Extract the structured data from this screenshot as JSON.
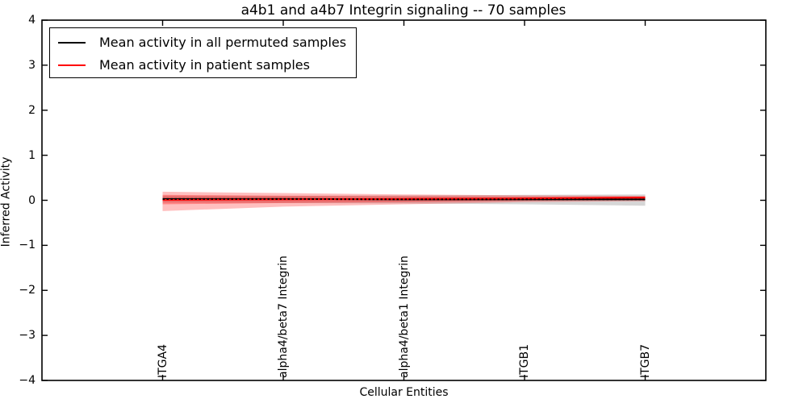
{
  "figure": {
    "title": "a4b1 and a4b7 Integrin signaling -- 70 samples",
    "xlabel": "Cellular Entities",
    "ylabel": "Inferred Activity",
    "background": "#ffffff"
  },
  "legend": {
    "position": "upper left",
    "entries": [
      {
        "label": "Mean activity in all permuted samples",
        "color": "#000000"
      },
      {
        "label": "Mean activity in patient samples",
        "color": "#ff0000"
      }
    ]
  },
  "chart_data": {
    "type": "line",
    "title": "a4b1 and a4b7 Integrin signaling -- 70 samples",
    "xlabel": "Cellular Entities",
    "ylabel": "Inferred Activity",
    "categories": [
      "ITGA4",
      "alpha4/beta7 Integrin",
      "alpha4/beta1 Integrin",
      "ITGB1",
      "ITGB7"
    ],
    "x": [
      1,
      2,
      3,
      4,
      5
    ],
    "xlim": [
      0,
      6
    ],
    "ylim": [
      -4,
      4
    ],
    "yticks": [
      -4,
      -3,
      -2,
      -1,
      0,
      1,
      2,
      3,
      4
    ],
    "grid": false,
    "legend_position": "upper left",
    "series": [
      {
        "name": "Mean activity in all permuted samples",
        "color": "#000000",
        "linestyle": "solid",
        "overlay": "dotted",
        "values": [
          0.03,
          0.03,
          0.02,
          0.02,
          0.02
        ]
      },
      {
        "name": "Mean activity in patient samples",
        "color": "#ff0000",
        "linestyle": "solid",
        "values": [
          0.01,
          0.02,
          0.03,
          0.04,
          0.06
        ]
      }
    ],
    "bands": [
      {
        "name": "permuted-samples-std-band",
        "color": "#777777",
        "opacity": 0.3,
        "upper": [
          0.1,
          0.1,
          0.11,
          0.12,
          0.13
        ],
        "lower": [
          -0.05,
          -0.06,
          -0.07,
          -0.09,
          -0.12
        ]
      },
      {
        "name": "patient-samples-outer-std-band",
        "color": "#ff0000",
        "opacity": 0.25,
        "upper": [
          0.19,
          0.16,
          0.13,
          0.11,
          0.1
        ],
        "lower": [
          -0.24,
          -0.14,
          -0.09,
          -0.04,
          -0.02
        ]
      },
      {
        "name": "patient-samples-inner-band",
        "color": "#ff0000",
        "opacity": 0.3,
        "upper": [
          0.12,
          0.1,
          0.09,
          0.08,
          0.08
        ],
        "lower": [
          -0.09,
          -0.06,
          -0.04,
          -0.01,
          0.01
        ]
      }
    ]
  }
}
